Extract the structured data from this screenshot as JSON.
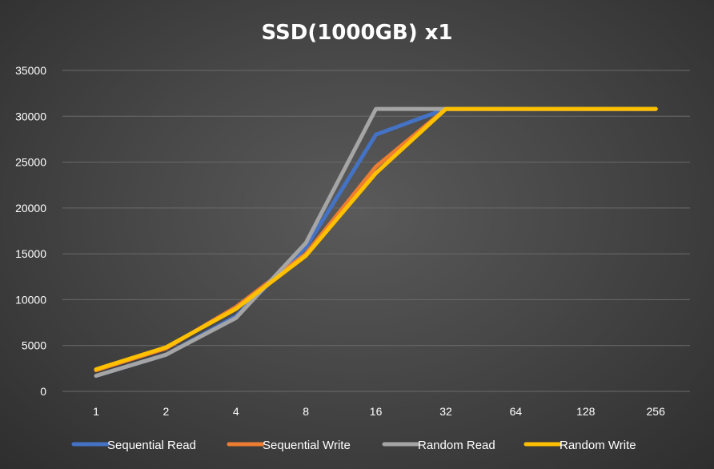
{
  "chart_data": {
    "type": "line",
    "title": "SSD(1000GB) x1",
    "categories": [
      "1",
      "2",
      "4",
      "8",
      "16",
      "32",
      "64",
      "128",
      "256"
    ],
    "ylim": [
      0,
      35000
    ],
    "yticks": [
      "0",
      "5000",
      "10000",
      "15000",
      "20000",
      "25000",
      "30000",
      "35000"
    ],
    "grid": true,
    "legend_position": "bottom",
    "series": [
      {
        "name": "Sequential Read",
        "color": "#4472C4",
        "values": [
          1700,
          4000,
          8200,
          15700,
          28000,
          30800,
          30800,
          30800,
          30800
        ]
      },
      {
        "name": "Sequential Write",
        "color": "#ED7D31",
        "values": [
          2300,
          4700,
          9200,
          15000,
          24500,
          30800,
          30800,
          30800,
          30800
        ]
      },
      {
        "name": "Random Read",
        "color": "#A5A5A5",
        "values": [
          1700,
          4000,
          8000,
          16200,
          30800,
          30800,
          30800,
          30800,
          30800
        ]
      },
      {
        "name": "Random Write",
        "color": "#FFC000",
        "values": [
          2400,
          4800,
          9000,
          14800,
          23800,
          30800,
          30800,
          30800,
          30800
        ]
      }
    ]
  }
}
